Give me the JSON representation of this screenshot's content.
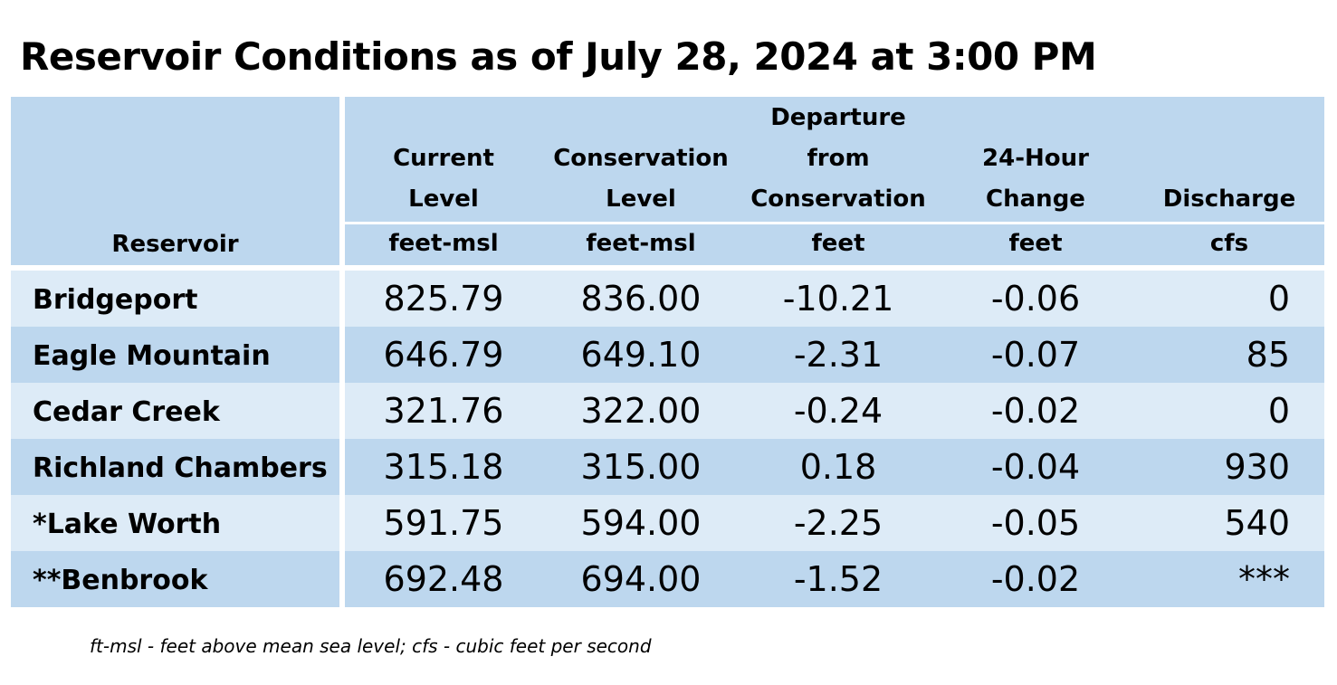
{
  "title": "Reservoir Conditions as of July 28, 2024 at 3:00 PM",
  "header": {
    "reservoir": "Reservoir",
    "columns": [
      {
        "lines": [
          "Current",
          "Level"
        ],
        "unit": "feet-msl"
      },
      {
        "lines": [
          "Conservation",
          "Level"
        ],
        "unit": "feet-msl"
      },
      {
        "lines": [
          "Departure",
          "from",
          "Conservation"
        ],
        "unit": "feet"
      },
      {
        "lines": [
          "24-Hour",
          "Change"
        ],
        "unit": "feet"
      },
      {
        "lines": [
          "Discharge"
        ],
        "unit": "cfs"
      }
    ]
  },
  "rows": [
    {
      "name": "Bridgeport",
      "current": "825.79",
      "conservation": "836.00",
      "departure": "-10.21",
      "change": "-0.06",
      "discharge": "0"
    },
    {
      "name": "Eagle Mountain",
      "current": "646.79",
      "conservation": "649.10",
      "departure": "-2.31",
      "change": "-0.07",
      "discharge": "85"
    },
    {
      "name": "Cedar Creek",
      "current": "321.76",
      "conservation": "322.00",
      "departure": "-0.24",
      "change": "-0.02",
      "discharge": "0"
    },
    {
      "name": "Richland Chambers",
      "current": "315.18",
      "conservation": "315.00",
      "departure": "0.18",
      "change": "-0.04",
      "discharge": "930"
    },
    {
      "name": "*Lake Worth",
      "current": "591.75",
      "conservation": "594.00",
      "departure": "-2.25",
      "change": "-0.05",
      "discharge": "540"
    },
    {
      "name": "**Benbrook",
      "current": "692.48",
      "conservation": "694.00",
      "departure": "-1.52",
      "change": "-0.02",
      "discharge": "***"
    }
  ],
  "footnote": "ft-msl - feet above mean sea level; cfs - cubic feet per second",
  "colors": {
    "header": "#bdd7ee",
    "row_light": "#ddebf7",
    "row_dark": "#bdd7ee"
  }
}
